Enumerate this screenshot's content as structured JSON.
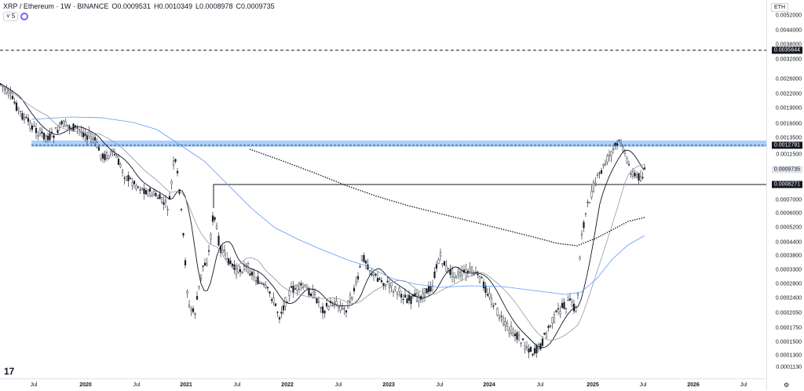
{
  "header": {
    "symbol": "XRP / Ethereum · 1W · BINANCE",
    "open_key": "O",
    "open": "0.0009531",
    "high_key": "H",
    "high": "0.0010349",
    "low_key": "L",
    "low": "0.0008978",
    "close_key": "C",
    "close": "0.0009735",
    "indicator_count": "5"
  },
  "price_axis": {
    "currency": "ETH",
    "ticks": [
      "0.0052000",
      "0.0044000",
      "0.0038000",
      "0.0032000",
      "0.0026000",
      "0.0022000",
      "0.0019000",
      "0.0016000",
      "0.0013500",
      "0.0011500",
      "0.0010000",
      "0.0008500",
      "0.0007000",
      "0.0006000",
      "0.0005200",
      "0.0004400",
      "0.0003800",
      "0.0003300",
      "0.0002800",
      "0.0002400",
      "0.0002050",
      "0.0001750",
      "0.0001500",
      "0.0001300",
      "0.0001130"
    ]
  },
  "price_labels": {
    "dashed_line": "0.0035644",
    "zone_line": "0.0012791",
    "current": "0.0009735",
    "support_line": "0.0008271"
  },
  "time_axis": [
    "Jul",
    "2020",
    "Jul",
    "2021",
    "Jul",
    "2022",
    "Jul",
    "2023",
    "Jul",
    "2024",
    "Jul",
    "2025",
    "Jul",
    "2026",
    "Jul"
  ],
  "colors": {
    "candle": "#131722",
    "zone": "#90bff9",
    "ma_fast": "#131722",
    "ma_mid": "#9598a1",
    "ma_slow": "#5b9cf6",
    "ma_200": "#131722"
  },
  "icons": {
    "logo": "tradingview-logo-icon",
    "settings": "gear-icon",
    "indicators": "indicator-toggle-icon"
  }
}
